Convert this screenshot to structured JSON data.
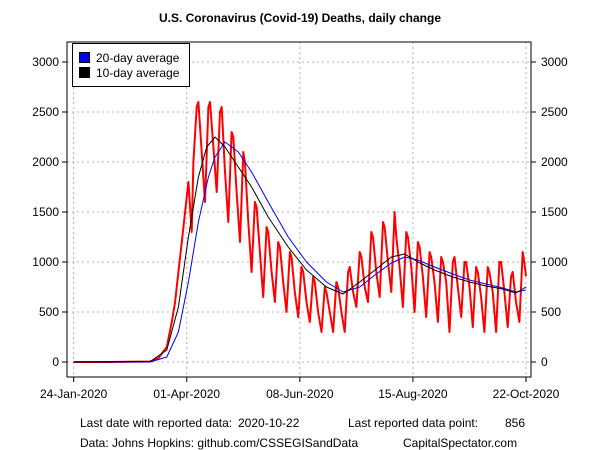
{
  "chart_data": {
    "type": "line",
    "title": "U.S. Coronavirus (Covid-19) Deaths, daily change",
    "x_ticks": [
      "24-Jan-2020",
      "01-Apr-2020",
      "08-Jun-2020",
      "15-Aug-2020",
      "22-Oct-2020"
    ],
    "y_ticks": [
      0,
      500,
      1000,
      1500,
      2000,
      2500,
      3000
    ],
    "ylim": [
      -150,
      3200
    ],
    "xlim": [
      "2020-01-20",
      "2020-10-25"
    ],
    "grid": true,
    "legend_position": "top-left",
    "series": [
      {
        "name": "daily",
        "color": "#ff0000",
        "x": [
          "2020-01-24",
          "2020-02-15",
          "2020-03-10",
          "2020-03-15",
          "2020-03-20",
          "2020-03-23",
          "2020-03-25",
          "2020-03-27",
          "2020-03-29",
          "2020-03-31",
          "2020-04-02",
          "2020-04-04",
          "2020-04-05",
          "2020-04-07",
          "2020-04-08",
          "2020-04-10",
          "2020-04-12",
          "2020-04-14",
          "2020-04-15",
          "2020-04-17",
          "2020-04-19",
          "2020-04-21",
          "2020-04-22",
          "2020-04-24",
          "2020-04-26",
          "2020-04-28",
          "2020-04-29",
          "2020-05-01",
          "2020-05-03",
          "2020-05-05",
          "2020-05-06",
          "2020-05-08",
          "2020-05-10",
          "2020-05-12",
          "2020-05-13",
          "2020-05-15",
          "2020-05-17",
          "2020-05-19",
          "2020-05-20",
          "2020-05-22",
          "2020-05-24",
          "2020-05-26",
          "2020-05-27",
          "2020-05-29",
          "2020-05-31",
          "2020-06-02",
          "2020-06-03",
          "2020-06-05",
          "2020-06-07",
          "2020-06-09",
          "2020-06-10",
          "2020-06-12",
          "2020-06-14",
          "2020-06-16",
          "2020-06-17",
          "2020-06-19",
          "2020-06-21",
          "2020-06-23",
          "2020-06-24",
          "2020-06-26",
          "2020-06-28",
          "2020-06-30",
          "2020-07-01",
          "2020-07-03",
          "2020-07-05",
          "2020-07-07",
          "2020-07-08",
          "2020-07-10",
          "2020-07-12",
          "2020-07-14",
          "2020-07-15",
          "2020-07-17",
          "2020-07-19",
          "2020-07-21",
          "2020-07-22",
          "2020-07-24",
          "2020-07-26",
          "2020-07-28",
          "2020-07-29",
          "2020-07-31",
          "2020-08-02",
          "2020-08-04",
          "2020-08-05",
          "2020-08-07",
          "2020-08-09",
          "2020-08-11",
          "2020-08-12",
          "2020-08-14",
          "2020-08-16",
          "2020-08-18",
          "2020-08-19",
          "2020-08-21",
          "2020-08-23",
          "2020-08-25",
          "2020-08-26",
          "2020-08-28",
          "2020-08-30",
          "2020-09-01",
          "2020-09-02",
          "2020-09-04",
          "2020-09-06",
          "2020-09-08",
          "2020-09-09",
          "2020-09-11",
          "2020-09-13",
          "2020-09-15",
          "2020-09-16",
          "2020-09-18",
          "2020-09-20",
          "2020-09-22",
          "2020-09-23",
          "2020-09-25",
          "2020-09-27",
          "2020-09-29",
          "2020-09-30",
          "2020-10-02",
          "2020-10-04",
          "2020-10-06",
          "2020-10-07",
          "2020-10-09",
          "2020-10-11",
          "2020-10-13",
          "2020-10-14",
          "2020-10-16",
          "2020-10-18",
          "2020-10-20",
          "2020-10-21",
          "2020-10-22"
        ],
        "values": [
          0,
          0,
          5,
          40,
          150,
          400,
          600,
          900,
          1200,
          1500,
          1800,
          1300,
          2000,
          2550,
          2600,
          2100,
          1600,
          2550,
          2600,
          2150,
          1700,
          2500,
          2550,
          1900,
          1400,
          2300,
          2250,
          1700,
          1200,
          2100,
          2000,
          1400,
          900,
          1600,
          1550,
          1100,
          650,
          1350,
          1300,
          900,
          600,
          1200,
          1150,
          800,
          500,
          1100,
          1050,
          700,
          450,
          950,
          900,
          600,
          400,
          850,
          800,
          500,
          300,
          750,
          700,
          500,
          300,
          800,
          750,
          500,
          300,
          900,
          950,
          700,
          550,
          1100,
          1050,
          750,
          600,
          1300,
          1250,
          900,
          650,
          1400,
          1350,
          1000,
          700,
          1500,
          1250,
          950,
          550,
          1300,
          1250,
          950,
          500,
          1200,
          1150,
          850,
          450,
          1100,
          1050,
          800,
          400,
          1050,
          1000,
          800,
          300,
          1000,
          1050,
          750,
          450,
          1000,
          1000,
          750,
          350,
          950,
          900,
          650,
          300,
          950,
          900,
          700,
          300,
          1000,
          1000,
          700,
          350,
          850,
          900,
          600,
          400,
          1100,
          1000,
          856
        ]
      },
      {
        "name": "20-day average",
        "color": "#0000ff",
        "x": [
          "2020-01-24",
          "2020-03-10",
          "2020-03-20",
          "2020-03-27",
          "2020-04-02",
          "2020-04-08",
          "2020-04-14",
          "2020-04-18",
          "2020-04-24",
          "2020-05-02",
          "2020-05-10",
          "2020-05-20",
          "2020-06-01",
          "2020-06-12",
          "2020-06-24",
          "2020-07-04",
          "2020-07-14",
          "2020-07-24",
          "2020-08-02",
          "2020-08-10",
          "2020-08-18",
          "2020-08-28",
          "2020-09-08",
          "2020-09-18",
          "2020-09-28",
          "2020-10-08",
          "2020-10-16",
          "2020-10-22"
        ],
        "values": [
          0,
          0,
          50,
          300,
          800,
          1400,
          1850,
          2050,
          2200,
          2100,
          1900,
          1600,
          1250,
          1000,
          800,
          700,
          750,
          880,
          990,
          1050,
          1020,
          950,
          880,
          820,
          780,
          740,
          700,
          720
        ]
      },
      {
        "name": "10-day average",
        "color": "#000000",
        "x": [
          "2020-01-24",
          "2020-03-10",
          "2020-03-20",
          "2020-03-27",
          "2020-04-02",
          "2020-04-08",
          "2020-04-13",
          "2020-04-18",
          "2020-04-24",
          "2020-05-02",
          "2020-05-10",
          "2020-05-20",
          "2020-06-01",
          "2020-06-12",
          "2020-06-24",
          "2020-07-04",
          "2020-07-14",
          "2020-07-24",
          "2020-08-02",
          "2020-08-10",
          "2020-08-18",
          "2020-08-28",
          "2020-09-08",
          "2020-09-18",
          "2020-09-28",
          "2020-10-08",
          "2020-10-16",
          "2020-10-22"
        ],
        "values": [
          0,
          5,
          120,
          550,
          1250,
          1850,
          2150,
          2250,
          2150,
          1950,
          1750,
          1450,
          1150,
          920,
          750,
          680,
          800,
          930,
          1050,
          1080,
          1000,
          920,
          850,
          800,
          760,
          730,
          690,
          750
        ]
      }
    ]
  },
  "legend": {
    "items": [
      {
        "label": "20-day average",
        "color": "#0000ff"
      },
      {
        "label": "10-day average",
        "color": "#000000"
      }
    ]
  },
  "footer": {
    "last_date_label": "Last date with reported data:",
    "last_date_value": "2020-10-22",
    "last_point_label": "Last reported data point:",
    "last_point_value": "856",
    "source": "Data: Johns Hopkins: github.com/CSSEGISandData",
    "brand": "CapitalSpectator.com"
  }
}
